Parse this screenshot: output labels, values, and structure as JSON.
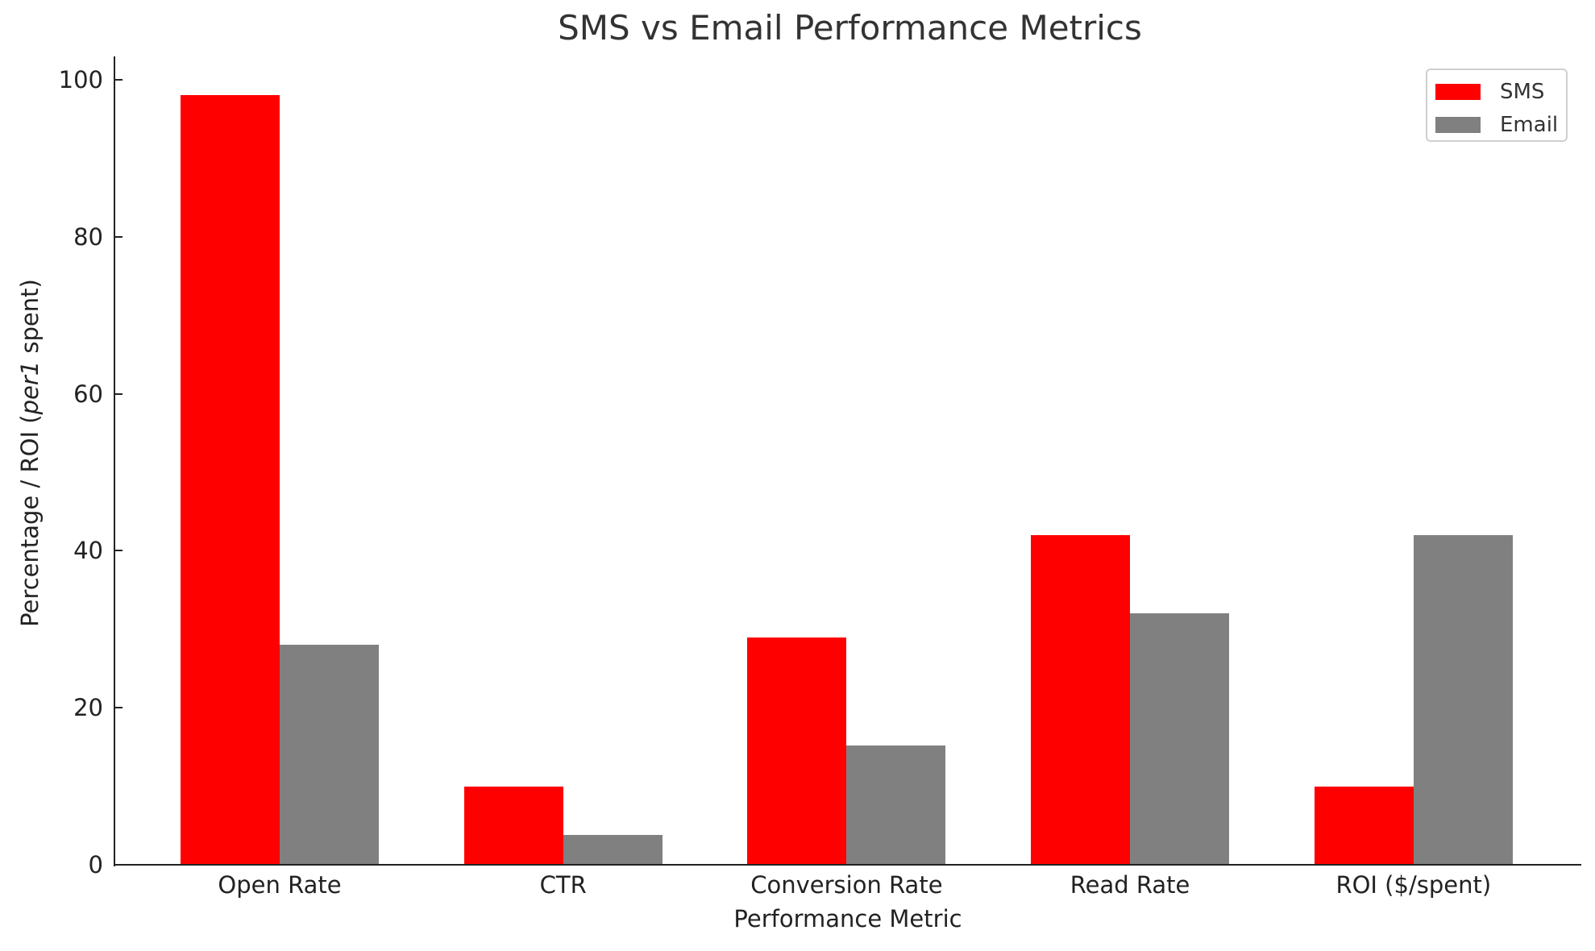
{
  "chart_data": {
    "type": "bar",
    "title": "SMS vs Email Performance Metrics",
    "xlabel": "Performance Metric",
    "ylabel": {
      "prefix": "Percentage / ROI (",
      "math": "per1",
      "suffix": " spent)",
      "full": "Percentage / ROI (per1 spent)"
    },
    "categories": [
      "Open Rate",
      "CTR",
      "Conversion Rate",
      "Read Rate",
      "ROI ($/spent)"
    ],
    "series": [
      {
        "name": "SMS",
        "color": "#ff0000",
        "values": [
          98,
          10,
          29,
          42,
          10
        ]
      },
      {
        "name": "Email",
        "color": "#808080",
        "values": [
          28,
          3.8,
          15.2,
          32,
          42
        ]
      }
    ],
    "yticks": [
      0,
      20,
      40,
      60,
      80,
      100
    ],
    "ylim": [
      0,
      103
    ],
    "grid": false,
    "legend_position": "upper right"
  }
}
